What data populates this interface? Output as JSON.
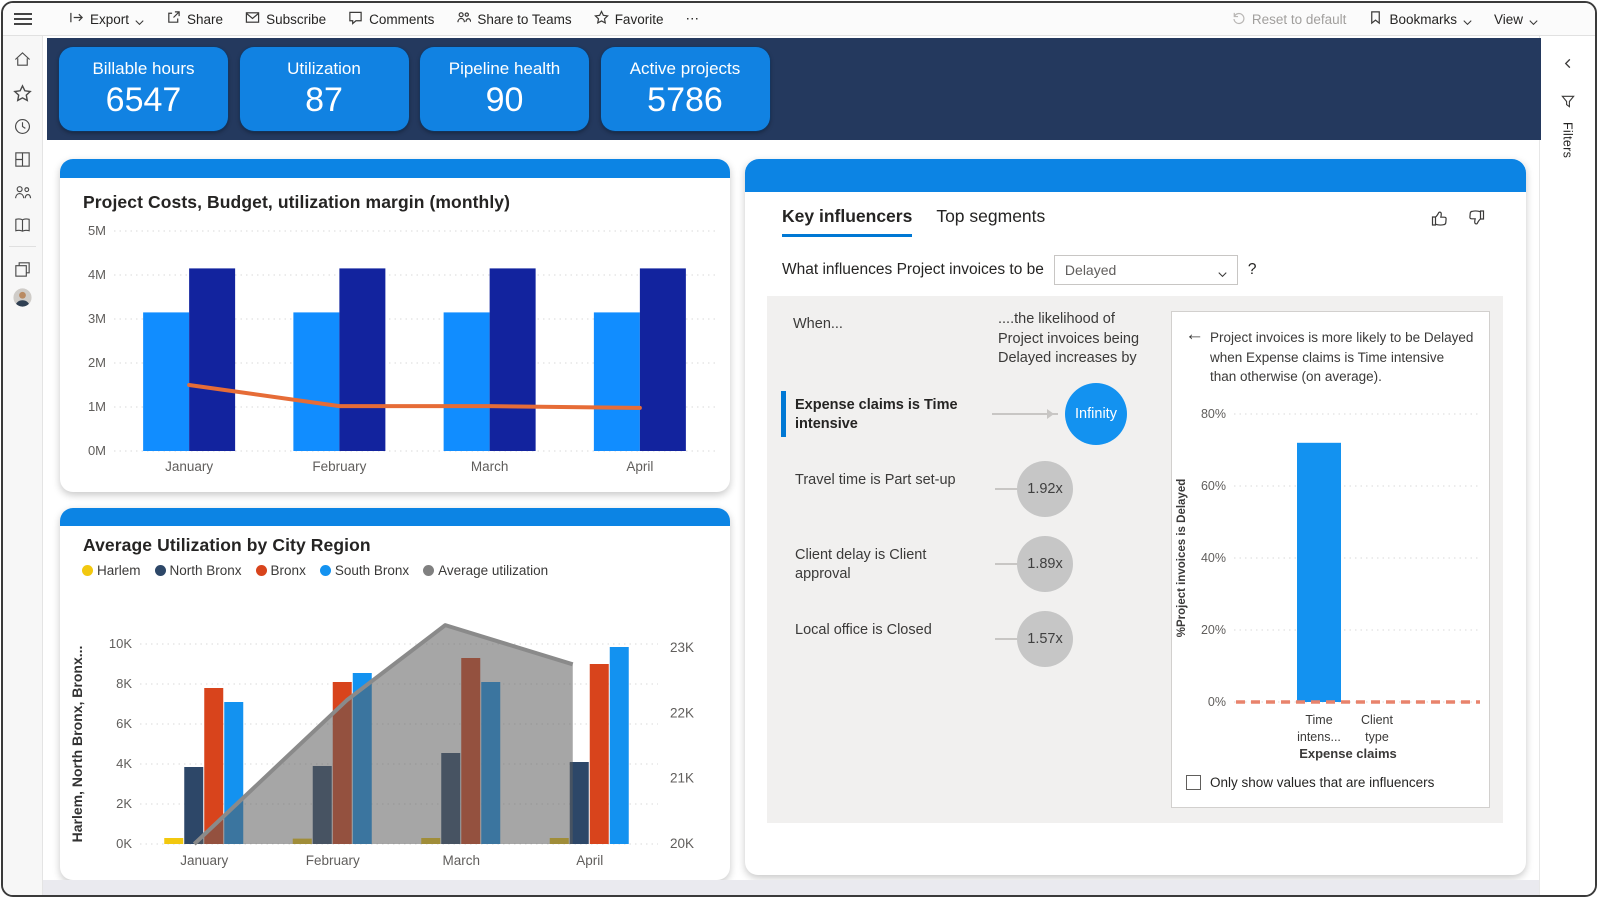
{
  "toolbar": {
    "left": [
      {
        "label": "Export",
        "icon": "export",
        "chevron": true
      },
      {
        "label": "Share",
        "icon": "share"
      },
      {
        "label": "Subscribe",
        "icon": "mail"
      },
      {
        "label": "Comments",
        "icon": "comment"
      },
      {
        "label": "Share to Teams",
        "icon": "teams"
      },
      {
        "label": "Favorite",
        "icon": "star"
      },
      {
        "label": "⋯",
        "icon": null
      }
    ],
    "right": [
      {
        "label": "Reset to default",
        "icon": "undo",
        "disabled": true
      },
      {
        "label": "Bookmarks",
        "icon": "bookmark",
        "chevron": true
      },
      {
        "label": "View",
        "icon": null,
        "chevron": true
      }
    ]
  },
  "sidebar": {
    "icons": [
      "home",
      "star",
      "clock",
      "grid",
      "people",
      "book",
      "layers",
      "avatar"
    ]
  },
  "filters_rail": {
    "label": "Filters"
  },
  "kpi_cards": [
    {
      "label": "Billable hours",
      "value": "6547"
    },
    {
      "label": "Utilization",
      "value": "87"
    },
    {
      "label": "Pipeline health",
      "value": "90"
    },
    {
      "label": "Active projects",
      "value": "5786"
    }
  ],
  "key_influencers": {
    "tabs": [
      "Key influencers",
      "Top segments"
    ],
    "question_prefix": "What influences Project invoices to be",
    "dropdown_value": "Delayed",
    "question_suffix": "?",
    "when_label": "When...",
    "likelihood_label": "....the likelihood of Project invoices being Delayed increases by",
    "influencers": [
      {
        "factor": "Expense claims is Time intensive",
        "impact": "Infinity",
        "selected": true
      },
      {
        "factor": "Travel time is Part set-up",
        "impact": "1.92x",
        "selected": false
      },
      {
        "factor": "Client delay is Client approval",
        "impact": "1.89x",
        "selected": false
      },
      {
        "factor": "Local office is Closed",
        "impact": "1.57x",
        "selected": false
      }
    ],
    "detail_text": "Project invoices is more likely to be Delayed when Expense claims is Time intensive than otherwise (on average).",
    "checkbox_label": "Only show values that are influencers"
  },
  "chart_data": [
    {
      "id": "costs",
      "type": "bar",
      "title": "Project Costs, Budget, utilization margin (monthly)",
      "categories": [
        "January",
        "February",
        "March",
        "April"
      ],
      "series": [
        {
          "name": "Project Costs",
          "kind": "bar",
          "color": "#118DFF",
          "values": [
            3.15,
            3.15,
            3.15,
            3.15
          ]
        },
        {
          "name": "Budget",
          "kind": "bar",
          "color": "#12239E",
          "values": [
            4.15,
            4.15,
            4.15,
            4.15
          ]
        },
        {
          "name": "utilization margin",
          "kind": "line",
          "color": "#E66C37",
          "values": [
            1.5,
            1.02,
            1.02,
            0.98
          ]
        }
      ],
      "ylim": [
        0,
        5
      ],
      "yticks": [
        "0M",
        "1M",
        "2M",
        "3M",
        "4M",
        "5M"
      ],
      "grid": true,
      "legend_position": "none"
    },
    {
      "id": "utilization-by-region",
      "type": "bar",
      "title": "Average Utilization by City Region",
      "categories": [
        "January",
        "February",
        "March",
        "April"
      ],
      "y_axis_label_left": "Harlem, North Bronx, Bronx...",
      "series": [
        {
          "name": "Harlem",
          "kind": "bar",
          "color": "#F2C80F",
          "values": [
            0.3,
            0.27,
            0.3,
            0.3
          ]
        },
        {
          "name": "North Bronx",
          "kind": "bar",
          "color": "#2D4768",
          "values": [
            3.85,
            3.9,
            4.55,
            4.1
          ]
        },
        {
          "name": "Bronx",
          "kind": "bar",
          "color": "#D8441C",
          "values": [
            7.8,
            8.1,
            9.3,
            9.0
          ]
        },
        {
          "name": "South Bronx",
          "kind": "bar",
          "color": "#1392F0",
          "values": [
            7.1,
            8.55,
            8.1,
            9.85
          ]
        },
        {
          "name": "Average utilization",
          "kind": "area",
          "axis": "right",
          "color": "#808080",
          "values": [
            20.0,
            22.2,
            23.35,
            22.75
          ]
        }
      ],
      "ylim_left": [
        0,
        10
      ],
      "yticks_left": [
        "0K",
        "2K",
        "4K",
        "6K",
        "8K",
        "10K"
      ],
      "ylim_right": [
        20,
        23
      ],
      "yticks_right": [
        "20K",
        "21K",
        "22K",
        "23K"
      ],
      "grid": true,
      "legend_position": "top"
    },
    {
      "id": "influencer-detail",
      "type": "bar",
      "categories": [
        [
          "Time",
          "intens..."
        ],
        [
          "Client",
          "type"
        ]
      ],
      "values": [
        72,
        null
      ],
      "bar_color": "#1392F0",
      "ylabel": "%Project invoices is Delayed",
      "xlabel": "Expense claims",
      "ylim": [
        0,
        80
      ],
      "yticks": [
        "0%",
        "20%",
        "40%",
        "60%",
        "80%"
      ],
      "average_line_value": 0,
      "average_line_color": "#E8836C",
      "grid": true
    }
  ],
  "theme": {
    "navy_band": "#24395e",
    "kpi_blue": "#1182e2",
    "card_cap_blue": "#0c84e4",
    "accent_blue": "#0078d4",
    "area_gray": "#808080"
  }
}
